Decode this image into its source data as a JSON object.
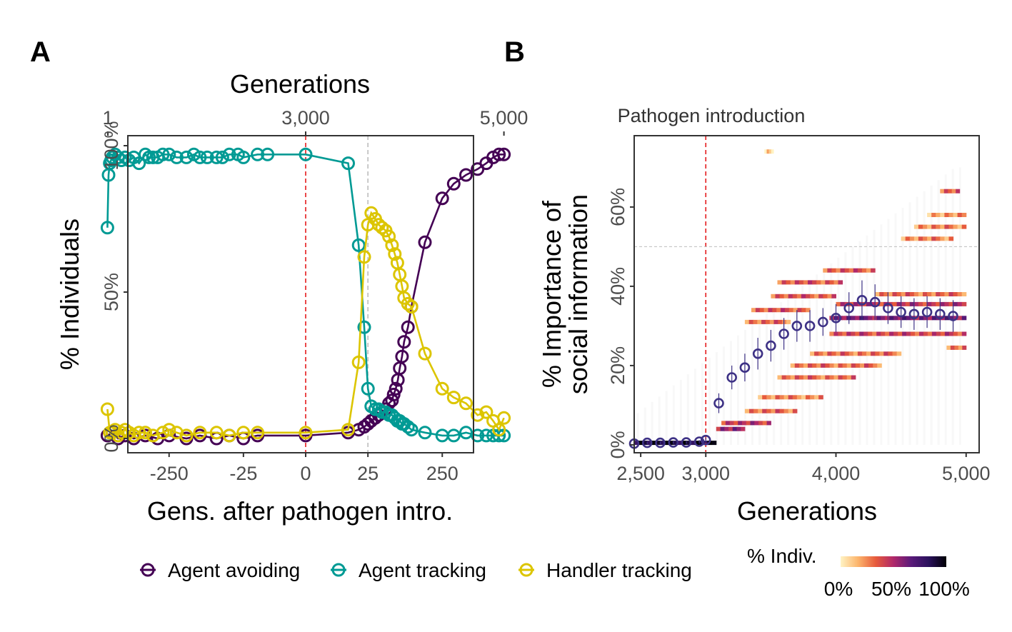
{
  "chart_data": [
    {
      "panel": "A",
      "type": "line",
      "title": "",
      "top_axis": {
        "title": "Generations",
        "ticks": [
          "1",
          "3,000",
          "5,000"
        ]
      },
      "xlabel": "Gens. after pathogen intro.",
      "x_ticks": [
        "-250",
        "-25",
        "0",
        "25",
        "250"
      ],
      "ylabel": "% Individuals",
      "y_ticks": [
        "0%",
        "50%",
        "100%"
      ],
      "ylim": [
        0,
        100
      ],
      "x_scale": "symmetric-log, generations relative to pathogen introduction",
      "reference_lines": [
        {
          "x": 0,
          "style": "dashed",
          "color": "#e41a1c"
        },
        {
          "x": 25,
          "style": "dashed",
          "color": "#bdbdbd"
        }
      ],
      "series": [
        {
          "name": "Agent avoiding",
          "color": "#440154",
          "x": [
            -1500,
            -1300,
            -1100,
            -900,
            -700,
            -500,
            -350,
            -250,
            -150,
            -100,
            -60,
            -40,
            -25,
            -15,
            0,
            12,
            18,
            22,
            25,
            28,
            32,
            36,
            40,
            45,
            50,
            55,
            58,
            62,
            66,
            70,
            75,
            80,
            90,
            100,
            150,
            250,
            350,
            500,
            700,
            900,
            1100,
            1300,
            1500
          ],
          "y": [
            1,
            2,
            0,
            1,
            0,
            1,
            0,
            1,
            0,
            1,
            0,
            1,
            0,
            1,
            1,
            2,
            3,
            4,
            5,
            6,
            7,
            8,
            9,
            10,
            12,
            13,
            15,
            17,
            20,
            24,
            28,
            33,
            38,
            45,
            67,
            82,
            87,
            90,
            92,
            94,
            96,
            97,
            97
          ]
        },
        {
          "name": "Agent tracking",
          "color": "#009a94",
          "x": [
            -1500,
            -1450,
            -1400,
            -1350,
            -1300,
            -1200,
            -1100,
            -1000,
            -900,
            -800,
            -700,
            -600,
            -500,
            -450,
            -400,
            -350,
            -300,
            -250,
            -200,
            -150,
            -120,
            -100,
            -80,
            -60,
            -50,
            -40,
            -30,
            -25,
            -15,
            -10,
            0,
            12,
            18,
            22,
            25,
            28,
            32,
            36,
            40,
            45,
            50,
            55,
            60,
            65,
            70,
            75,
            80,
            90,
            100,
            150,
            250,
            350,
            500,
            700,
            900,
            1100,
            1300,
            1500
          ],
          "y": [
            72,
            90,
            94,
            95,
            96,
            97,
            96,
            95,
            96,
            95,
            96,
            94,
            97,
            96,
            96,
            96,
            97,
            97,
            96,
            96,
            97,
            96,
            96,
            96,
            96,
            97,
            97,
            96,
            97,
            97,
            97,
            94,
            66,
            38,
            17,
            11,
            10,
            10,
            9,
            9,
            8,
            8,
            7,
            6,
            6,
            5,
            5,
            4,
            3,
            2,
            1,
            1,
            2,
            1,
            1,
            1,
            1,
            1
          ]
        },
        {
          "name": "Handler tracking",
          "color": "#dcc500",
          "x": [
            -1500,
            -1400,
            -1300,
            -1200,
            -1100,
            -1000,
            -900,
            -800,
            -700,
            -600,
            -500,
            -400,
            -300,
            -250,
            -200,
            -150,
            -100,
            -60,
            -40,
            -25,
            -15,
            0,
            12,
            18,
            22,
            25,
            28,
            32,
            36,
            40,
            45,
            50,
            55,
            60,
            65,
            70,
            75,
            80,
            90,
            100,
            150,
            250,
            350,
            500,
            700,
            900,
            1100,
            1300,
            1500
          ],
          "y": [
            10,
            2,
            2,
            3,
            1,
            2,
            3,
            2,
            1,
            2,
            2,
            1,
            2,
            3,
            2,
            1,
            2,
            2,
            1,
            2,
            2,
            2,
            3,
            26,
            62,
            73,
            77,
            75,
            73,
            72,
            71,
            69,
            66,
            63,
            60,
            56,
            52,
            48,
            46,
            45,
            29,
            17,
            14,
            12,
            8,
            9,
            6,
            3,
            7
          ]
        }
      ]
    },
    {
      "panel": "B",
      "type": "heatmap",
      "title": "",
      "xlabel": "Generations",
      "x_ticks": [
        "2,500",
        "3,000",
        "4,000",
        "5,000"
      ],
      "xlim": [
        2450,
        5100
      ],
      "ylabel": "% Importance of social information",
      "ylabel_lines": [
        "% Importance of",
        "social information"
      ],
      "y_ticks": [
        "0%",
        "20%",
        "40%",
        "60%"
      ],
      "ylim": [
        -2,
        78
      ],
      "annotation": "Pathogen introduction",
      "reference_lines": [
        {
          "x": 3000,
          "style": "dashed",
          "color": "#e41a1c"
        },
        {
          "y": 50,
          "style": "dashed",
          "color": "#bdbdbd"
        }
      ],
      "colorbar": {
        "title": "% Indiv.",
        "ticks": [
          "0%",
          "50%",
          "100%"
        ],
        "colors": [
          "#fff3c4",
          "#fcb46b",
          "#e65a3c",
          "#b0286a",
          "#5a1a7a",
          "#2a115c",
          "#000004"
        ]
      },
      "mean_series": {
        "color": "#3d3185",
        "x": [
          2450,
          2550,
          2650,
          2750,
          2850,
          2950,
          3000,
          3100,
          3200,
          3300,
          3400,
          3500,
          3600,
          3700,
          3800,
          3900,
          4000,
          4100,
          4200,
          4300,
          4400,
          4500,
          4600,
          4700,
          4800,
          4900
        ],
        "y": [
          0.3,
          0.5,
          0.5,
          0.6,
          0.6,
          0.8,
          1.2,
          10.5,
          17,
          19.5,
          23,
          25,
          28,
          30,
          30,
          31,
          32,
          34.5,
          36.5,
          36,
          34.5,
          33.5,
          33,
          33.5,
          33,
          32.5
        ],
        "err": [
          0.3,
          0.3,
          0.3,
          0.3,
          0.3,
          0.4,
          0.6,
          2.5,
          3,
          3.5,
          4,
          4,
          4,
          4,
          4,
          3.5,
          3.5,
          4,
          5,
          4.5,
          4,
          4,
          4,
          4,
          4,
          4
        ]
      },
      "bands": [
        {
          "x0": 2450,
          "x1": 3080,
          "y": 0.5,
          "level": 0.92
        },
        {
          "x0": 3080,
          "x1": 3300,
          "y": 4,
          "level": 0.55
        },
        {
          "x0": 3120,
          "x1": 3500,
          "y": 5.5,
          "level": 0.45
        },
        {
          "x0": 3300,
          "x1": 3700,
          "y": 8.5,
          "level": 0.3
        },
        {
          "x0": 3400,
          "x1": 3900,
          "y": 12,
          "level": 0.25
        },
        {
          "x0": 3550,
          "x1": 4150,
          "y": 17,
          "level": 0.3
        },
        {
          "x0": 3650,
          "x1": 4350,
          "y": 20,
          "level": 0.3
        },
        {
          "x0": 3800,
          "x1": 4500,
          "y": 23,
          "level": 0.3
        },
        {
          "x0": 3300,
          "x1": 3650,
          "y": 31,
          "level": 0.3
        },
        {
          "x0": 3350,
          "x1": 3800,
          "y": 34,
          "level": 0.35
        },
        {
          "x0": 3500,
          "x1": 4000,
          "y": 37.5,
          "level": 0.35
        },
        {
          "x0": 3550,
          "x1": 4050,
          "y": 41,
          "level": 0.35
        },
        {
          "x0": 3900,
          "x1": 4300,
          "y": 44,
          "level": 0.35
        },
        {
          "x0": 3950,
          "x1": 5000,
          "y": 28,
          "level": 0.4
        },
        {
          "x0": 3950,
          "x1": 5000,
          "y": 32,
          "level": 0.6
        },
        {
          "x0": 4000,
          "x1": 5000,
          "y": 35.5,
          "level": 0.45
        },
        {
          "x0": 4300,
          "x1": 5000,
          "y": 38,
          "level": 0.3
        },
        {
          "x0": 4500,
          "x1": 4900,
          "y": 52,
          "level": 0.25
        },
        {
          "x0": 4600,
          "x1": 5000,
          "y": 55,
          "level": 0.25
        },
        {
          "x0": 4700,
          "x1": 5000,
          "y": 58,
          "level": 0.2
        },
        {
          "x0": 4800,
          "x1": 4950,
          "y": 64,
          "level": 0.35
        },
        {
          "x0": 4850,
          "x1": 5000,
          "y": 24.5,
          "level": 0.3
        },
        {
          "x0": 3450,
          "x1": 3520,
          "y": 74,
          "level": 0.12
        }
      ]
    }
  ],
  "panel_labels": {
    "a": "A",
    "b": "B"
  },
  "legend": {
    "items": [
      {
        "label": "Agent avoiding",
        "color": "#440154"
      },
      {
        "label": "Agent tracking",
        "color": "#009a94"
      },
      {
        "label": "Handler tracking",
        "color": "#dcc500"
      }
    ]
  }
}
